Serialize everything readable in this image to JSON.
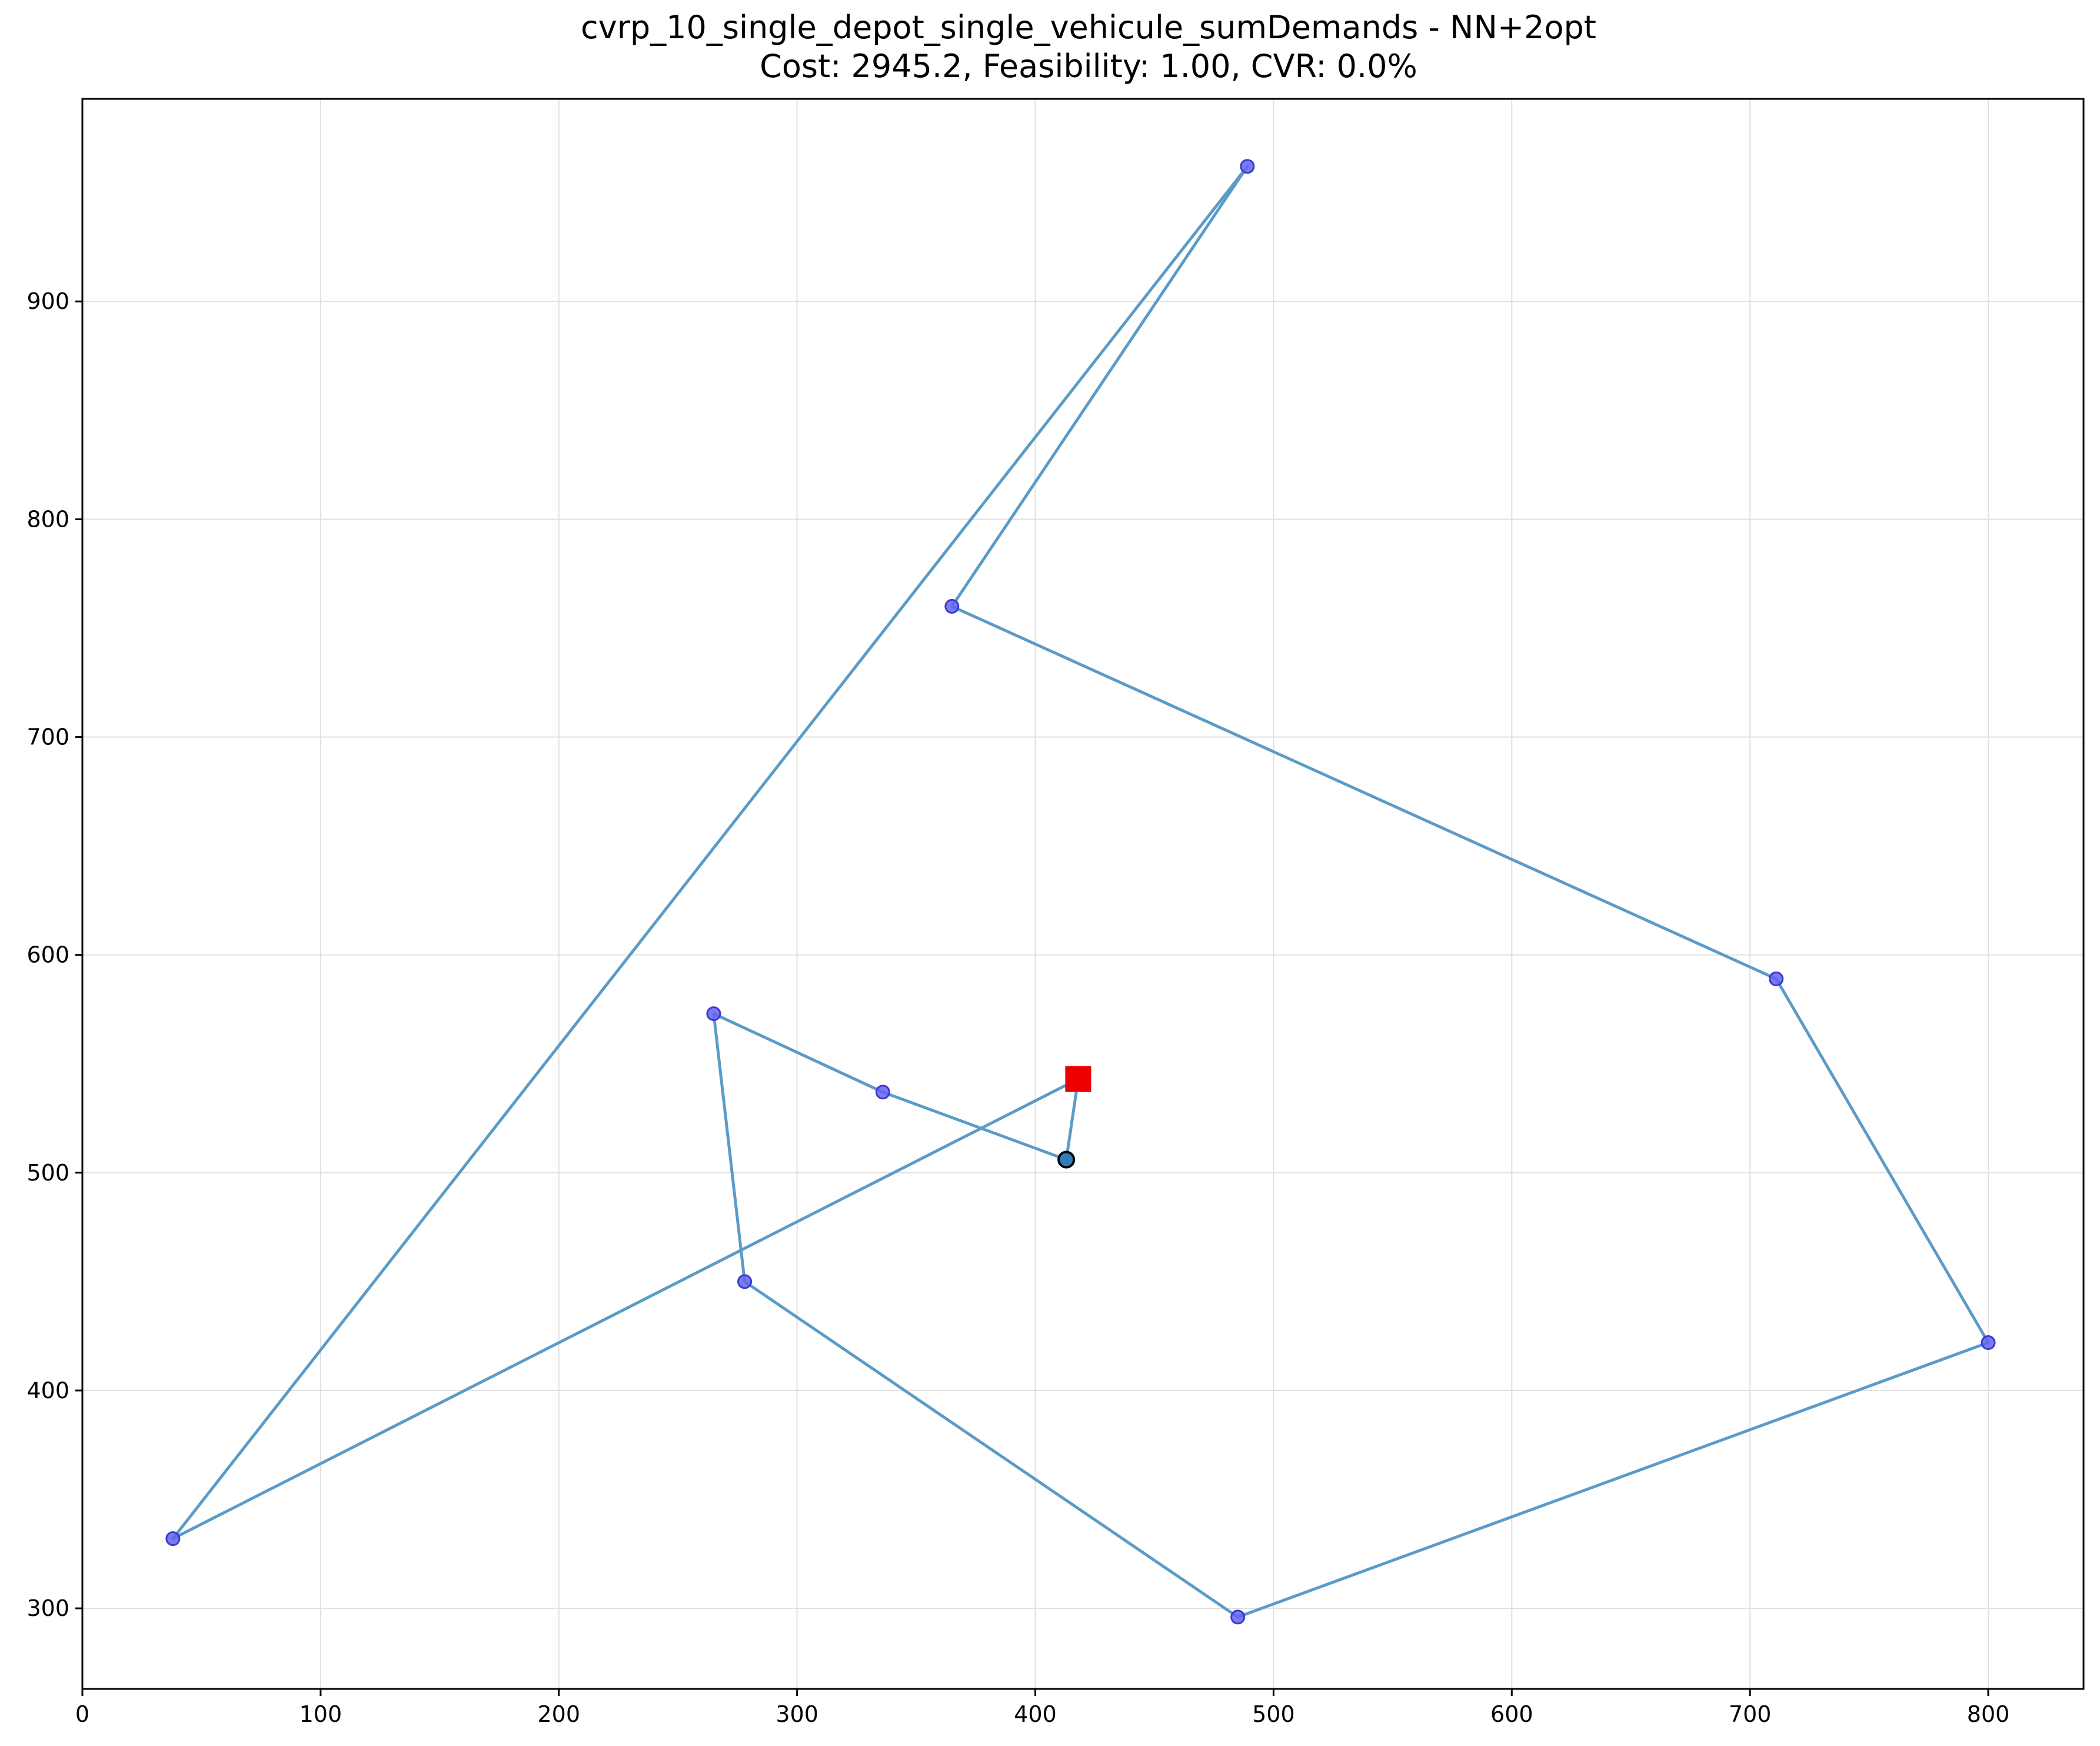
{
  "chart_data": {
    "type": "scatter",
    "title": "cvrp_10_single_depot_single_vehicule_sumDemands - NN+2opt",
    "subtitle": "Cost: 2945.2, Feasibility: 1.00, CVR: 0.0%",
    "xlabel": "",
    "ylabel": "",
    "xlim": [
      0,
      840
    ],
    "ylim": [
      263,
      993
    ],
    "xticks": [
      0,
      100,
      200,
      300,
      400,
      500,
      600,
      700,
      800
    ],
    "yticks": [
      300,
      400,
      500,
      600,
      700,
      800,
      900
    ],
    "grid": true,
    "legend": "none",
    "colors": {
      "route": "#5b9bc8",
      "customer_fill": "#6464ee",
      "customer_edge": "#3a3ad0",
      "depot": "#ee0000",
      "start_fill": "#2f7fb8",
      "grid": "#e0e0e0"
    },
    "depot": {
      "x": 418,
      "y": 543
    },
    "start_point": {
      "x": 413,
      "y": 506
    },
    "customers": [
      {
        "x": 336,
        "y": 537
      },
      {
        "x": 265,
        "y": 573
      },
      {
        "x": 278,
        "y": 450
      },
      {
        "x": 485,
        "y": 296
      },
      {
        "x": 800,
        "y": 422
      },
      {
        "x": 711,
        "y": 589
      },
      {
        "x": 365,
        "y": 760
      },
      {
        "x": 489,
        "y": 962
      },
      {
        "x": 38,
        "y": 332
      }
    ],
    "route": [
      {
        "x": 418,
        "y": 543
      },
      {
        "x": 413,
        "y": 506
      },
      {
        "x": 336,
        "y": 537
      },
      {
        "x": 265,
        "y": 573
      },
      {
        "x": 278,
        "y": 450
      },
      {
        "x": 485,
        "y": 296
      },
      {
        "x": 800,
        "y": 422
      },
      {
        "x": 711,
        "y": 589
      },
      {
        "x": 365,
        "y": 760
      },
      {
        "x": 489,
        "y": 962
      },
      {
        "x": 38,
        "y": 332
      },
      {
        "x": 418,
        "y": 543
      }
    ]
  }
}
